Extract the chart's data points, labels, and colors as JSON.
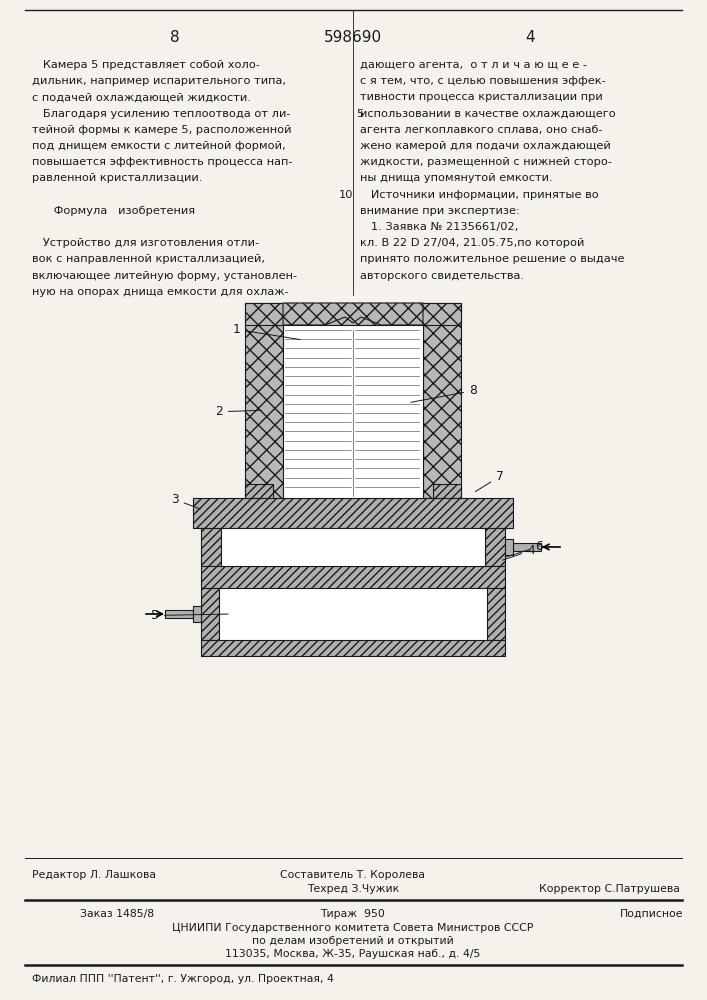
{
  "bg_color": "#f5f2ec",
  "page_number_left": "8",
  "page_number_center": "598690",
  "page_number_right": "4",
  "left_column_text": [
    "   Камера 5 представляет собой холо-",
    "дильник, например испарительного типа,",
    "с подачей охлаждающей жидкости.",
    "   Благодаря усилению теплоотвода от ли-",
    "тейной формы к камере 5, расположенной",
    "под днищем емкости с литейной формой,",
    "повышается эффективность процесса нап-",
    "равленной кристаллизации.",
    "",
    "      Формула   изобретения",
    "",
    "   Устройство для изготовления отли-",
    "вок с направленной кристаллизацией,",
    "включающее литейную форму, установлен-",
    "ную на опорах днища емкости для охлаж-"
  ],
  "right_column_text": [
    "дающего агента,  о т л и ч а ю щ е е -",
    "с я тем, что, с целью повышения эффек-",
    "тивности процесса кристаллизации при",
    "использовании в качестве охлаждающего",
    "агента легкоплавкого сплава, оно снаб-",
    "жено камерой для подачи охлаждающей",
    "жидкости, размещенной с нижней сторо-",
    "ны днища упомянутой емкости.",
    "   Источники информации, принятые во",
    "внимание при экспертизе:",
    "   1. Заявка № 2135661/02,",
    "кл. В 22 D 27/04, 21.05.75,по которой",
    "принято положительное решение о выдаче",
    "авторского свидетельства."
  ],
  "line_number_5": "5",
  "line_number_10": "10",
  "footer_line1_left": "Редактор Л. Лашкова",
  "footer_line1_center": "Составитель Т. Королева",
  "footer_line2_center": "Техред З.Чужик",
  "footer_line2_right": "Корректор С.Патрушева",
  "footer_line3_left": "Заказ 1485/8",
  "footer_line3_center": "Тираж  950",
  "footer_line3_right": "Подписное",
  "footer_line4": "ЦНИИПИ Государственного комитета Совета Министров СССР",
  "footer_line5": "по делам изобретений и открытий",
  "footer_line6": "113035, Москва, Ж-35, Раушская наб., д. 4/5",
  "footer_line7": "Филиал ППП ''Патент'', г. Ужгород, ул. Проектная, 4",
  "text_color": "#1a1a1a",
  "line_color": "#1a1a1a",
  "hatch_color": "#333333",
  "hatch_bg": "#c8c8c8"
}
